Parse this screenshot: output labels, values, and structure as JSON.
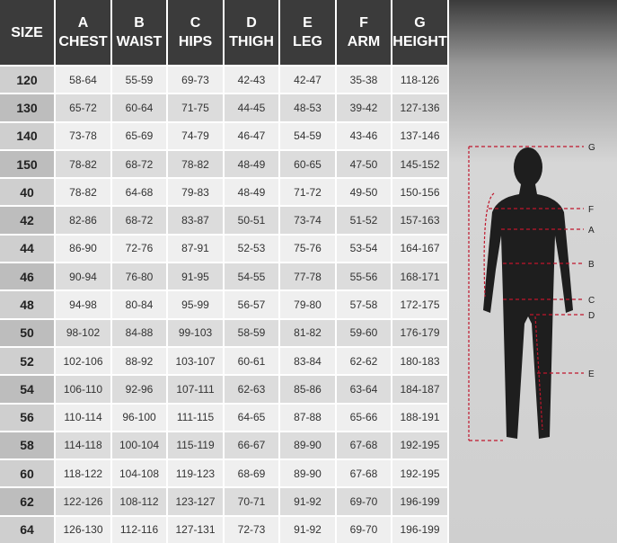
{
  "table": {
    "header": [
      [
        "SIZE"
      ],
      [
        "A",
        "CHEST"
      ],
      [
        "B",
        "WAIST"
      ],
      [
        "C",
        "HIPS"
      ],
      [
        "D",
        "THIGH"
      ],
      [
        "E",
        "LEG"
      ],
      [
        "F",
        "ARM"
      ],
      [
        "G",
        "HEIGHT"
      ]
    ],
    "rows": [
      [
        "120",
        "58-64",
        "55-59",
        "69-73",
        "42-43",
        "42-47",
        "35-38",
        "118-126"
      ],
      [
        "130",
        "65-72",
        "60-64",
        "71-75",
        "44-45",
        "48-53",
        "39-42",
        "127-136"
      ],
      [
        "140",
        "73-78",
        "65-69",
        "74-79",
        "46-47",
        "54-59",
        "43-46",
        "137-146"
      ],
      [
        "150",
        "78-82",
        "68-72",
        "78-82",
        "48-49",
        "60-65",
        "47-50",
        "145-152"
      ],
      [
        "40",
        "78-82",
        "64-68",
        "79-83",
        "48-49",
        "71-72",
        "49-50",
        "150-156"
      ],
      [
        "42",
        "82-86",
        "68-72",
        "83-87",
        "50-51",
        "73-74",
        "51-52",
        "157-163"
      ],
      [
        "44",
        "86-90",
        "72-76",
        "87-91",
        "52-53",
        "75-76",
        "53-54",
        "164-167"
      ],
      [
        "46",
        "90-94",
        "76-80",
        "91-95",
        "54-55",
        "77-78",
        "55-56",
        "168-171"
      ],
      [
        "48",
        "94-98",
        "80-84",
        "95-99",
        "56-57",
        "79-80",
        "57-58",
        "172-175"
      ],
      [
        "50",
        "98-102",
        "84-88",
        "99-103",
        "58-59",
        "81-82",
        "59-60",
        "176-179"
      ],
      [
        "52",
        "102-106",
        "88-92",
        "103-107",
        "60-61",
        "83-84",
        "62-62",
        "180-183"
      ],
      [
        "54",
        "106-110",
        "92-96",
        "107-111",
        "62-63",
        "85-86",
        "63-64",
        "184-187"
      ],
      [
        "56",
        "110-114",
        "96-100",
        "111-115",
        "64-65",
        "87-88",
        "65-66",
        "188-191"
      ],
      [
        "58",
        "114-118",
        "100-104",
        "115-119",
        "66-67",
        "89-90",
        "67-68",
        "192-195"
      ],
      [
        "60",
        "118-122",
        "104-108",
        "119-123",
        "68-69",
        "89-90",
        "67-68",
        "192-195"
      ],
      [
        "62",
        "122-126",
        "108-112",
        "123-127",
        "70-71",
        "91-92",
        "69-70",
        "196-199"
      ],
      [
        "64",
        "126-130",
        "112-116",
        "127-131",
        "72-73",
        "91-92",
        "69-70",
        "196-199"
      ]
    ]
  },
  "figure": {
    "labels": [
      "G",
      "F",
      "A",
      "B",
      "C",
      "D",
      "E"
    ]
  }
}
